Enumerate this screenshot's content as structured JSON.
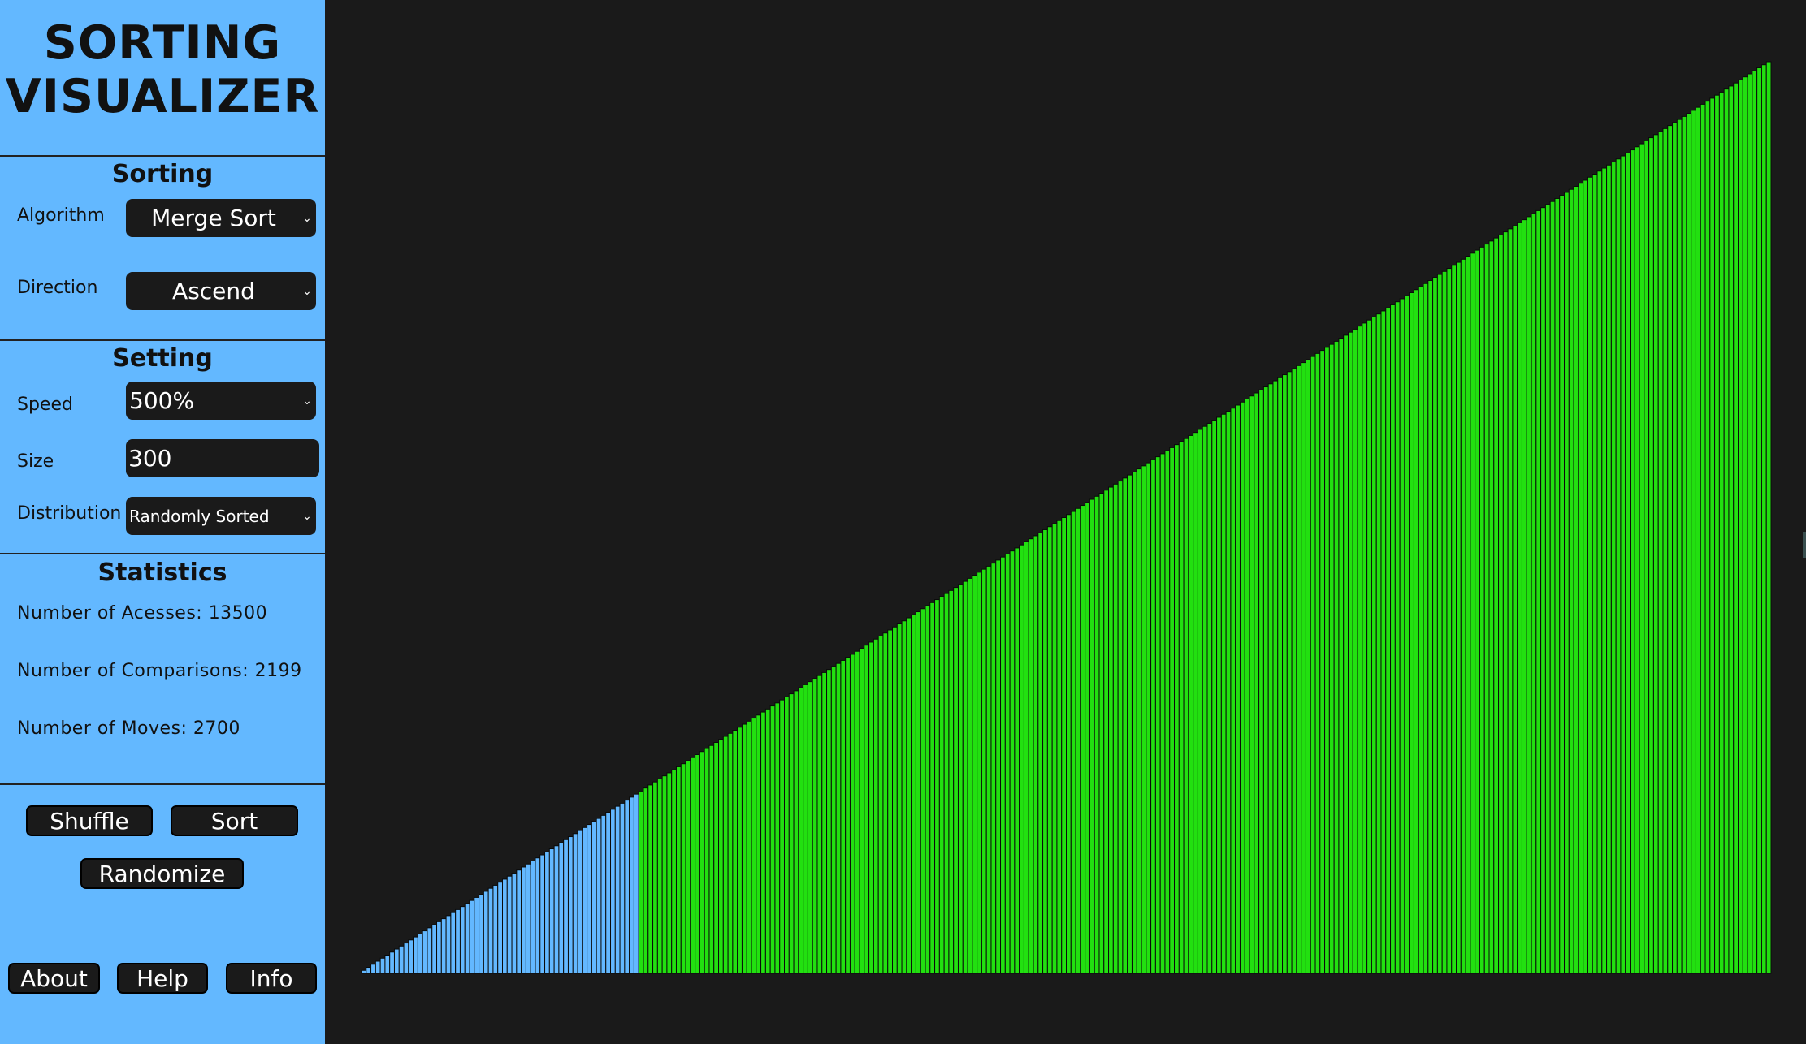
{
  "app": {
    "title_line1": "SORTING",
    "title_line2": "VISUALIZER"
  },
  "sorting": {
    "heading": "Sorting",
    "algorithm_label": "Algorithm",
    "algorithm_value": "Merge Sort",
    "direction_label": "Direction",
    "direction_value": "Ascend"
  },
  "setting": {
    "heading": "Setting",
    "speed_label": "Speed",
    "speed_value": "500%",
    "size_label": "Size",
    "size_value": "300",
    "distribution_label": "Distribution",
    "distribution_value": "Randomly Sorted"
  },
  "statistics": {
    "heading": "Statistics",
    "accesses": "Number of Acesses: 13500",
    "comparisons": "Number of Comparisons: 2199",
    "moves": "Number of Moves: 2700"
  },
  "buttons": {
    "shuffle": "Shuffle",
    "sort": "Sort",
    "randomize": "Randomize",
    "about": "About",
    "help": "Help",
    "info": "Info"
  },
  "icons": {
    "dropdown": "chevron-down-icon"
  },
  "colors": {
    "sidebar": "#63b8ff",
    "background": "#1a1a1a",
    "bar_sorted": "#22e010",
    "bar_pending": "#63b8ff",
    "bar_outline": "#0a0a0a"
  },
  "visualizer": {
    "bar_count": 300,
    "values_min": 1,
    "values_max": 300,
    "order": "ascending",
    "pending_bar_count": 59
  }
}
